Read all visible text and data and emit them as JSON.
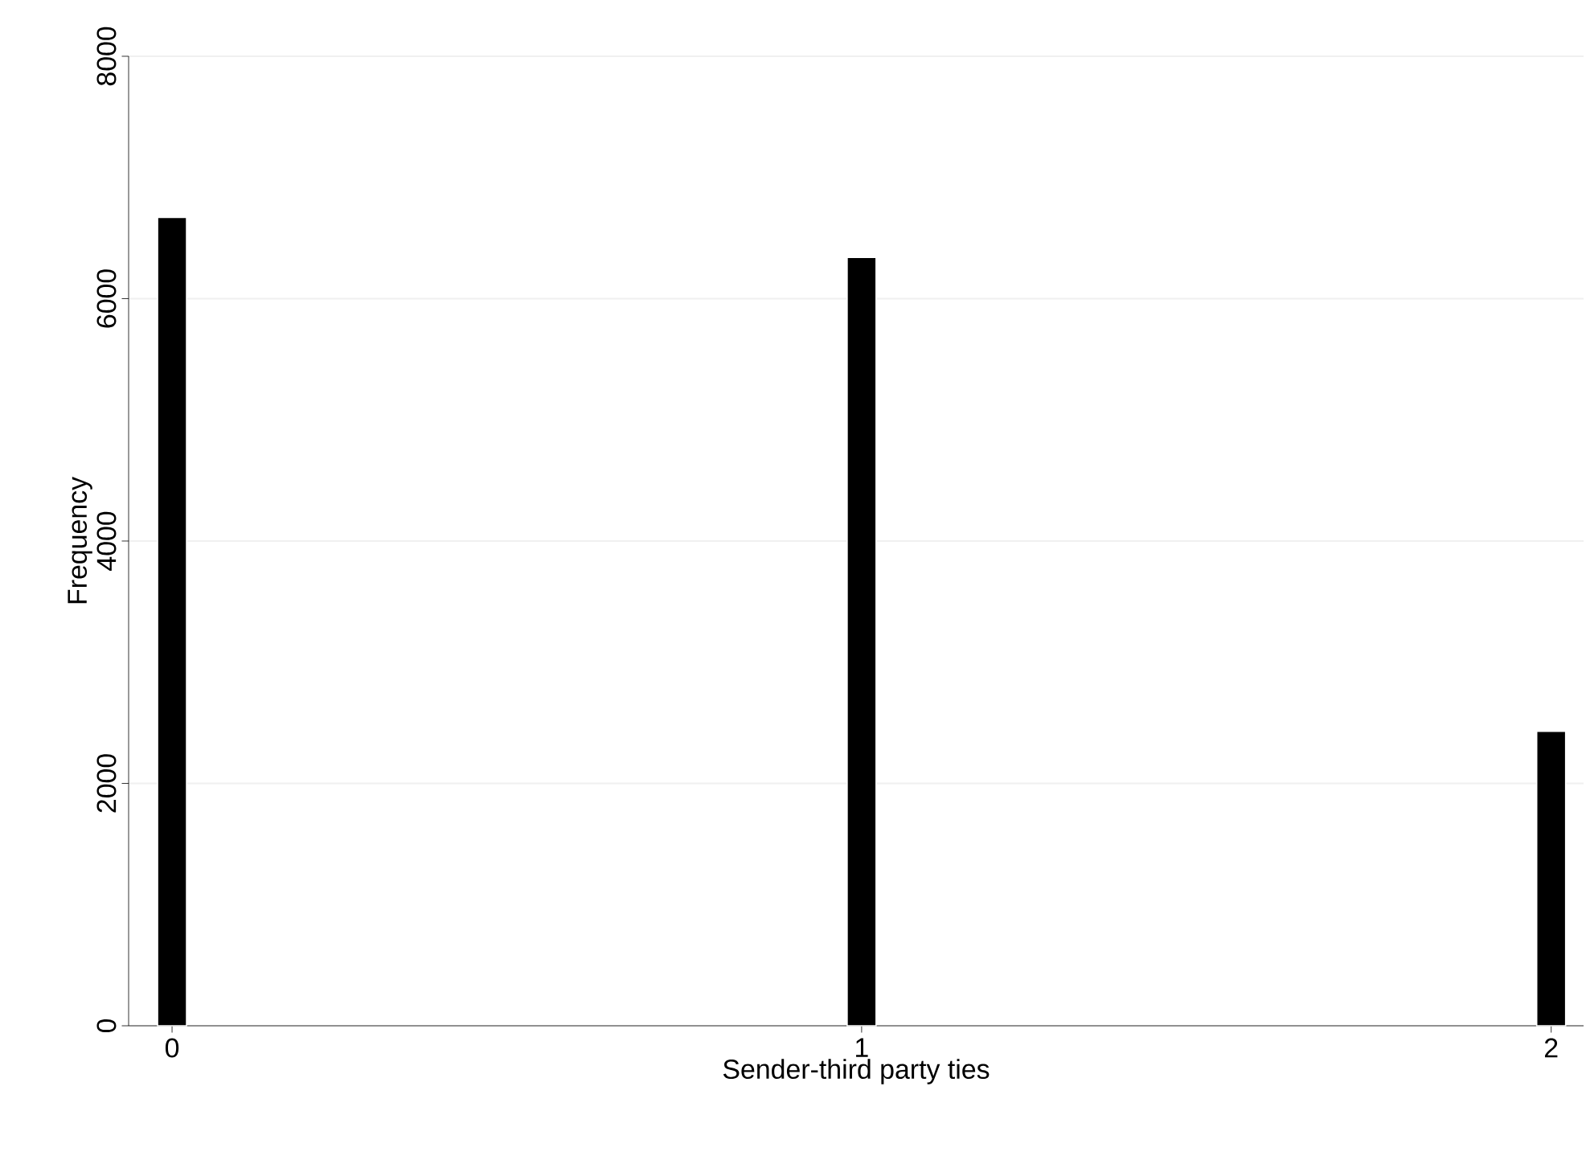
{
  "chart_data": {
    "type": "bar",
    "xlabel": "Sender-third party ties",
    "ylabel": "Frequency",
    "x": [
      0,
      1,
      2
    ],
    "values": [
      6670,
      6340,
      2430
    ],
    "color": "#000000",
    "xlim": [
      -0.063,
      2.047
    ],
    "xticks": [
      0,
      1,
      2
    ],
    "ylim": [
      0,
      8000
    ],
    "yticks": [
      0,
      2000,
      4000,
      6000,
      8000
    ],
    "grid": "y"
  }
}
